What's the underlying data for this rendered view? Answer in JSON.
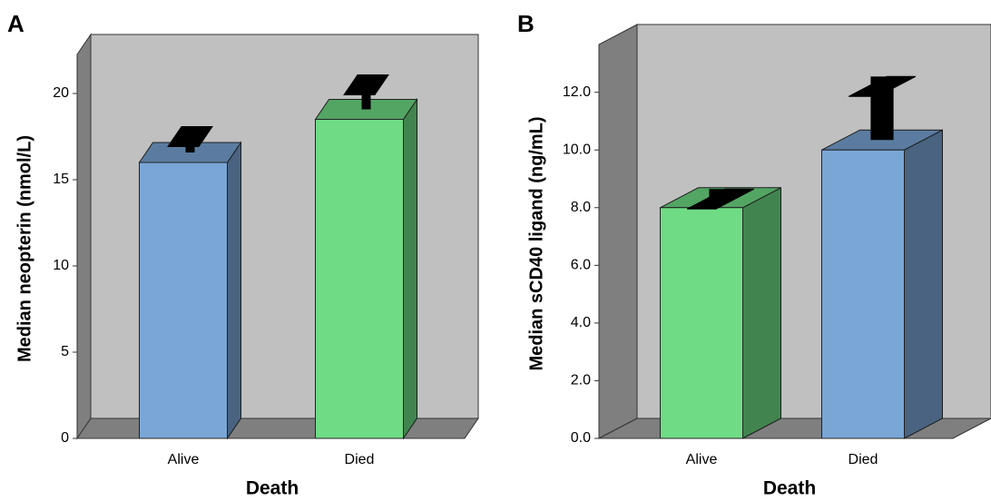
{
  "chart_data": [
    {
      "type": "bar",
      "panel": "A",
      "x_label": "Death",
      "y_label": "Median neopterin (nmol/L)",
      "categories": [
        "Alive",
        "Died"
      ],
      "values": [
        16,
        18.5
      ],
      "errors": [
        1.5,
        2
      ],
      "colors": [
        "#7aa6d6",
        "#6fdc85"
      ],
      "ylim": [
        0,
        22
      ],
      "yticks": [
        0,
        5,
        10,
        15,
        20
      ]
    },
    {
      "type": "bar",
      "panel": "B",
      "x_label": "Death",
      "y_label": "Median sCD40 ligand (ng/mL)",
      "categories": [
        "Alive",
        "Died"
      ],
      "values": [
        8,
        10
      ],
      "errors": [
        0.3,
        2.2
      ],
      "colors": [
        "#6fdc85",
        "#7aa6d6"
      ],
      "ylim": [
        0,
        13.5
      ],
      "yticks": [
        {
          "value": 0,
          "label": "0.0"
        },
        {
          "value": 2,
          "label": "2.0"
        },
        {
          "value": 4,
          "label": "4.0"
        },
        {
          "value": 6,
          "label": "6.0"
        },
        {
          "value": 8,
          "label": "8.0"
        },
        {
          "value": 10,
          "label": "10.0"
        },
        {
          "value": 12,
          "label": "12.0"
        }
      ]
    }
  ]
}
